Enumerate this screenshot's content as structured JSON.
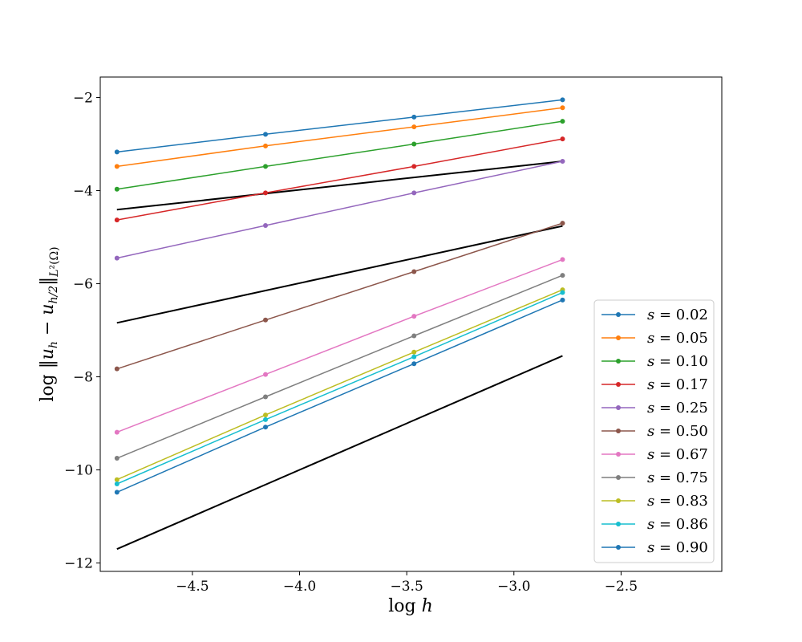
{
  "chart_data": {
    "type": "line",
    "xlabel": "log h",
    "ylabel": "log ||u_h − u_{h/2}||_{L²(Ω)}",
    "xlim": [
      -4.93,
      -2.03
    ],
    "ylim": [
      -12.18,
      -1.56
    ],
    "xticks": [
      -4.5,
      -4.0,
      -3.5,
      -3.0,
      -2.5
    ],
    "yticks": [
      -12,
      -10,
      -8,
      -6,
      -4,
      -2
    ],
    "xtick_labels": [
      "−4.5",
      "−4.0",
      "−3.5",
      "−3.0",
      "−2.5"
    ],
    "ytick_labels": [
      "−12",
      "−10",
      "−8",
      "−6",
      "−4",
      "−2"
    ],
    "grid": false,
    "legend_position": "lower-right",
    "legend_prefix": "s =",
    "x": [
      -4.852,
      -4.159,
      -3.466,
      -2.773
    ],
    "series": [
      {
        "name": "0.02",
        "color": "#1f77b4",
        "values": [
          -3.17,
          -2.79,
          -2.42,
          -2.05
        ]
      },
      {
        "name": "0.05",
        "color": "#ff7f0e",
        "values": [
          -3.48,
          -3.04,
          -2.63,
          -2.22
        ]
      },
      {
        "name": "0.10",
        "color": "#2ca02c",
        "values": [
          -3.97,
          -3.48,
          -3.0,
          -2.51
        ]
      },
      {
        "name": "0.17",
        "color": "#d62728",
        "values": [
          -4.63,
          -4.05,
          -3.48,
          -2.89
        ]
      },
      {
        "name": "0.25",
        "color": "#9467bd",
        "values": [
          -5.45,
          -4.75,
          -4.05,
          -3.37
        ]
      },
      {
        "name": "0.50",
        "color": "#8c564b",
        "values": [
          -7.83,
          -6.78,
          -5.74,
          -4.7
        ]
      },
      {
        "name": "0.67",
        "color": "#e377c2",
        "values": [
          -9.19,
          -7.95,
          -6.7,
          -5.48
        ]
      },
      {
        "name": "0.75",
        "color": "#7f7f7f",
        "values": [
          -9.75,
          -8.43,
          -7.12,
          -5.82
        ]
      },
      {
        "name": "0.83",
        "color": "#bcbd22",
        "values": [
          -10.21,
          -8.82,
          -7.47,
          -6.13
        ]
      },
      {
        "name": "0.86",
        "color": "#17becf",
        "values": [
          -10.3,
          -8.92,
          -7.57,
          -6.19
        ]
      },
      {
        "name": "0.90",
        "color": "#1f77b4",
        "values": [
          -10.48,
          -9.08,
          -7.72,
          -6.35
        ]
      }
    ],
    "reference_lines": [
      {
        "color": "#000000",
        "x": [
          -4.852,
          -2.773
        ],
        "values": [
          -4.41,
          -3.37
        ]
      },
      {
        "color": "#000000",
        "x": [
          -4.852,
          -2.773
        ],
        "values": [
          -6.84,
          -4.76
        ]
      },
      {
        "color": "#000000",
        "x": [
          -4.852,
          -2.773
        ],
        "values": [
          -11.7,
          -7.55
        ]
      }
    ]
  }
}
